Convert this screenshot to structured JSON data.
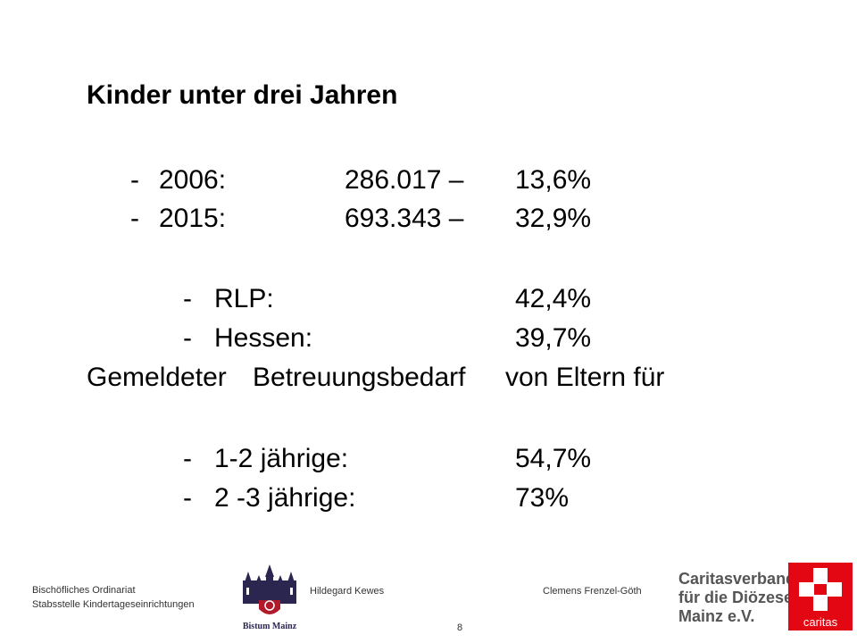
{
  "title": "Kinder unter drei Jahren",
  "rows": [
    {
      "dash": "-",
      "label": "2006:",
      "value": "286.017 –",
      "percent": "13,6%"
    },
    {
      "dash": "-",
      "label": "2015:",
      "value": "693.343 –",
      "percent": "32,9%"
    }
  ],
  "state_rows": [
    {
      "dash": "-",
      "label": "RLP:",
      "percent": "42,4%"
    },
    {
      "dash": "-",
      "label": "Hessen:",
      "percent": "39,7%"
    }
  ],
  "need_heading": {
    "w1": "Gemeldeter",
    "w2": "Betreuungsbedarf",
    "w3": "von Eltern für"
  },
  "age_rows": [
    {
      "dash": "-",
      "label": "1-2 jährige:",
      "percent": "54,7%"
    },
    {
      "dash": "-",
      "label": "2 -3 jährige:",
      "percent": "73%"
    }
  ],
  "footer": {
    "org_line1": "Bischöfliches Ordinariat",
    "org_line2": "Stabsstelle Kindertageseinrichtungen",
    "author1": "Hildegard Kewes",
    "author2": "Clemens Frenzel-Göth",
    "page_number": "8",
    "bistum_logo_text": "Bistum Mainz",
    "caritas_line1": "Caritasverband",
    "caritas_line2": "für die Diözese",
    "caritas_line3": "Mainz e.V.",
    "caritas_mark_text": "caritas"
  },
  "colors": {
    "caritas_red": "#e30613",
    "bistum_blue": "#2a2650",
    "bistum_red": "#b01a2b"
  }
}
